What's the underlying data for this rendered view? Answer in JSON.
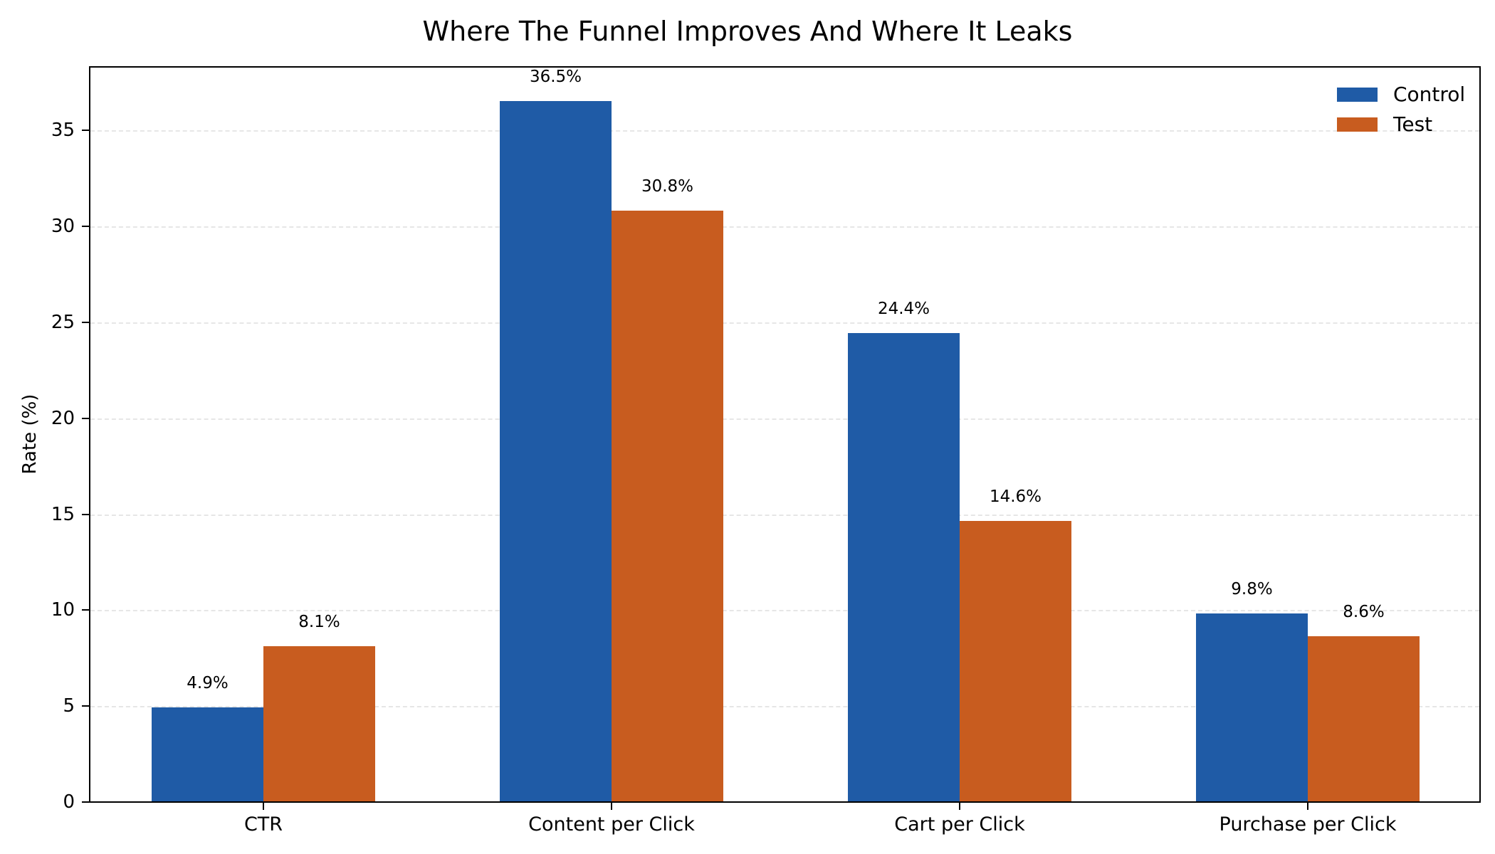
{
  "title": "Where The Funnel Improves And Where It Leaks",
  "colors": {
    "control": "#1f5ba6",
    "test": "#c85c1f"
  },
  "yaxis": {
    "label": "Rate (%)",
    "ticks": [
      "0",
      "5",
      "10",
      "15",
      "20",
      "25",
      "30",
      "35"
    ]
  },
  "xaxis": {
    "ticks": [
      "CTR",
      "Content per Click",
      "Cart per Click",
      "Purchase per Click"
    ]
  },
  "legend": {
    "items": [
      {
        "label": "Control"
      },
      {
        "label": "Test"
      }
    ]
  },
  "labels": {
    "control": [
      "4.9%",
      "36.5%",
      "24.4%",
      "9.8%"
    ],
    "test": [
      "8.1%",
      "30.8%",
      "14.6%",
      "8.6%"
    ]
  },
  "chart_data": {
    "type": "bar",
    "title": "Where The Funnel Improves And Where It Leaks",
    "xlabel": "",
    "ylabel": "Rate (%)",
    "categories": [
      "CTR",
      "Content per Click",
      "Cart per Click",
      "Purchase per Click"
    ],
    "series": [
      {
        "name": "Control",
        "color": "#1f5ba6",
        "values": [
          4.9,
          36.5,
          24.4,
          9.8
        ]
      },
      {
        "name": "Test",
        "color": "#c85c1f",
        "values": [
          8.1,
          30.8,
          14.6,
          8.6
        ]
      }
    ],
    "ylim": [
      0,
      38.4
    ],
    "yticks": [
      0,
      5,
      10,
      15,
      20,
      25,
      30,
      35
    ],
    "grid": {
      "y": true,
      "style": "dashed"
    },
    "legend_position": "upper right",
    "data_labels": true
  }
}
